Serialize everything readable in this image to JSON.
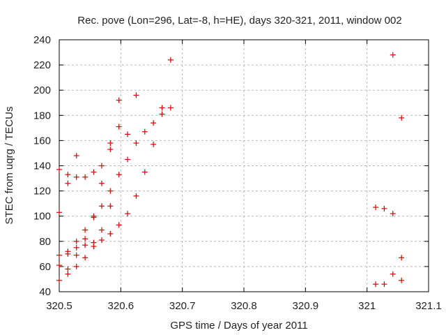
{
  "chart_data": {
    "type": "scatter",
    "title": "Rec. pove (Lon=296, Lat=-8, h=HE), days 320-321, 2011, window 002",
    "xlabel": "GPS time / Days of year 2011",
    "ylabel": "STEC from uqrg / TECUs",
    "xlim": [
      320.5,
      321.1
    ],
    "ylim": [
      40,
      240
    ],
    "xticks": [
      "320.5",
      "320.6",
      "320.7",
      "320.8",
      "320.9",
      "321",
      "321.1"
    ],
    "xtick_values": [
      320.5,
      320.6,
      320.7,
      320.8,
      320.9,
      321.0,
      321.1
    ],
    "yticks": [
      "40",
      "60",
      "80",
      "100",
      "120",
      "140",
      "160",
      "180",
      "200",
      "220",
      "240"
    ],
    "ytick_values": [
      40,
      60,
      80,
      100,
      120,
      140,
      160,
      180,
      200,
      220,
      240
    ],
    "grid": true,
    "marker": "+",
    "marker_color": "#dd0000",
    "points": [
      [
        320.5,
        49
      ],
      [
        320.5,
        61
      ],
      [
        320.5,
        69
      ],
      [
        320.5,
        103
      ],
      [
        320.5,
        137
      ],
      [
        320.514,
        54
      ],
      [
        320.514,
        58
      ],
      [
        320.514,
        70
      ],
      [
        320.514,
        72
      ],
      [
        320.514,
        126
      ],
      [
        320.514,
        133
      ],
      [
        320.528,
        60
      ],
      [
        320.528,
        69
      ],
      [
        320.528,
        75
      ],
      [
        320.528,
        80
      ],
      [
        320.528,
        131
      ],
      [
        320.528,
        148
      ],
      [
        320.542,
        67
      ],
      [
        320.542,
        77
      ],
      [
        320.542,
        82
      ],
      [
        320.542,
        89
      ],
      [
        320.542,
        131
      ],
      [
        320.556,
        76
      ],
      [
        320.556,
        79
      ],
      [
        320.556,
        99
      ],
      [
        320.556,
        100
      ],
      [
        320.556,
        135
      ],
      [
        320.569,
        81
      ],
      [
        320.569,
        89
      ],
      [
        320.569,
        108
      ],
      [
        320.569,
        126
      ],
      [
        320.569,
        140
      ],
      [
        320.583,
        86
      ],
      [
        320.583,
        108
      ],
      [
        320.583,
        120
      ],
      [
        320.583,
        153
      ],
      [
        320.583,
        158
      ],
      [
        320.597,
        93
      ],
      [
        320.597,
        133
      ],
      [
        320.597,
        171
      ],
      [
        320.597,
        192
      ],
      [
        320.611,
        102
      ],
      [
        320.611,
        145
      ],
      [
        320.611,
        165
      ],
      [
        320.625,
        116
      ],
      [
        320.625,
        158
      ],
      [
        320.625,
        196
      ],
      [
        320.639,
        135
      ],
      [
        320.639,
        167
      ],
      [
        320.653,
        157
      ],
      [
        320.653,
        174
      ],
      [
        320.667,
        181
      ],
      [
        320.667,
        186
      ],
      [
        320.681,
        186
      ],
      [
        320.681,
        224
      ],
      [
        321.014,
        46
      ],
      [
        321.014,
        107
      ],
      [
        321.028,
        46
      ],
      [
        321.028,
        106
      ],
      [
        321.042,
        54
      ],
      [
        321.042,
        102
      ],
      [
        321.042,
        228
      ],
      [
        321.056,
        49
      ],
      [
        321.056,
        67
      ],
      [
        321.056,
        178
      ]
    ]
  }
}
